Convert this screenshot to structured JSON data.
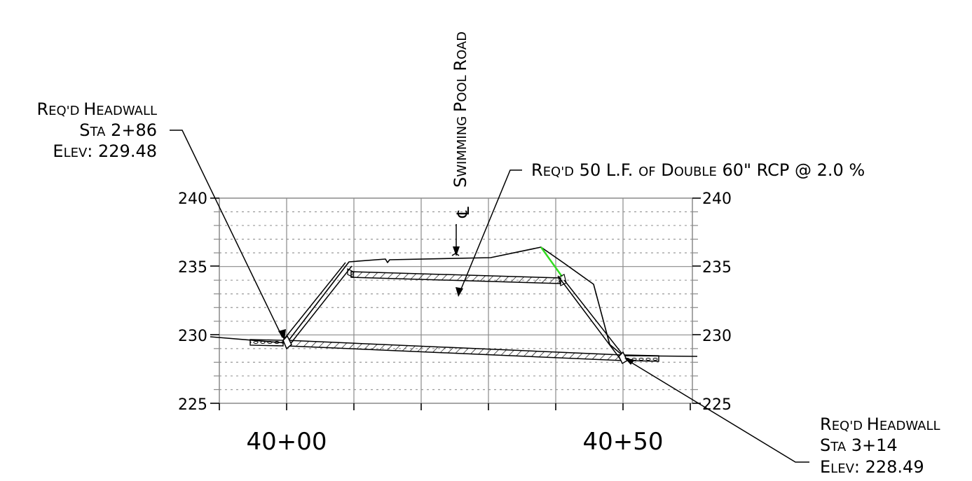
{
  "drawing": {
    "centerline_symbol": "℄",
    "road_label": {
      "first": "S",
      "rest1": "WIMMING ",
      "p": "P",
      "rest2": "OOL ",
      "r": "R",
      "rest3": "OAD"
    },
    "headwall_left": {
      "line1": {
        "R": "R",
        "eq": "EQ'D ",
        "H": "H",
        "eadwall": "EADWALL"
      },
      "line2": {
        "S": "S",
        "ta": "TA",
        "value": " 2+86"
      },
      "line3": {
        "E": "E",
        "lev": "LEV",
        "value": ": 229.48"
      }
    },
    "headwall_right": {
      "line1": {
        "R": "R",
        "eq": "EQ'D ",
        "H": "H",
        "eadwall": "EADWALL"
      },
      "line2": {
        "S": "S",
        "ta": "TA",
        "value": " 3+14"
      },
      "line3": {
        "E": "E",
        "lev": "LEV",
        "value": ": 228.49"
      }
    },
    "pipe_note": {
      "R": "R",
      "eq": "EQ'D",
      "mid": " 50 L.F. ",
      "of": "OF",
      "sp": " ",
      "D": "D",
      "ouble": "OUBLE",
      "tail": " 60\" RCP @ 2.0 %"
    },
    "line_colors": {
      "ink": "#000000",
      "highlight": "#33dd22",
      "grid": "#9a9a9a"
    }
  },
  "chart_data": {
    "type": "profile",
    "y_ticks_left": [
      "240",
      "235",
      "230",
      "225"
    ],
    "y_ticks_right": [
      "240",
      "235",
      "230",
      "225"
    ],
    "y_range": [
      225,
      240
    ],
    "x_labels": [
      "40+00",
      "40+50"
    ],
    "x_range": [
      3995,
      4060
    ],
    "ground_line": [
      [
        3990,
        229.7
      ],
      [
        4010,
        235.2
      ],
      [
        4015,
        235.4
      ],
      [
        4030,
        235.7
      ],
      [
        4038,
        236.4
      ],
      [
        4044,
        233.7
      ],
      [
        4050,
        228.2
      ]
    ],
    "pipe_top": [
      [
        4000,
        229.5
      ],
      [
        4050,
        228.5
      ]
    ],
    "road_pipe": [
      [
        4007,
        234.5
      ],
      [
        4040,
        233.9
      ]
    ]
  }
}
